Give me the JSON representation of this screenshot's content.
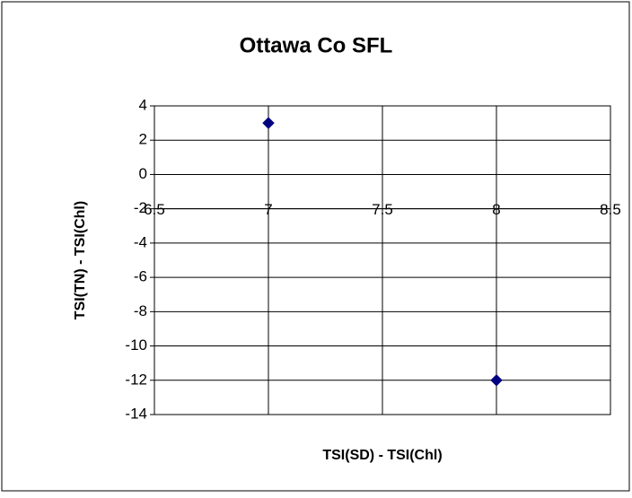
{
  "chart_data": {
    "type": "scatter",
    "title": "Ottawa Co SFL",
    "xlabel": "TSI(SD) - TSI(Chl)",
    "ylabel": "TSI(TN) - TSI(Chl)",
    "series": [
      {
        "color": "#000080",
        "x": [
          7,
          8
        ],
        "values": [
          3,
          -12
        ]
      }
    ],
    "xlim": [
      6.5,
      8.5
    ],
    "xticks": [
      6.5,
      7,
      7.5,
      8,
      8.5
    ],
    "ylim": [
      -14,
      4
    ],
    "yticks": [
      4,
      2,
      0,
      -2,
      -4,
      -6,
      -8,
      -10,
      -12,
      -14
    ],
    "x_axis_crosses_at": -2,
    "grid": true,
    "marker": "diamond"
  }
}
